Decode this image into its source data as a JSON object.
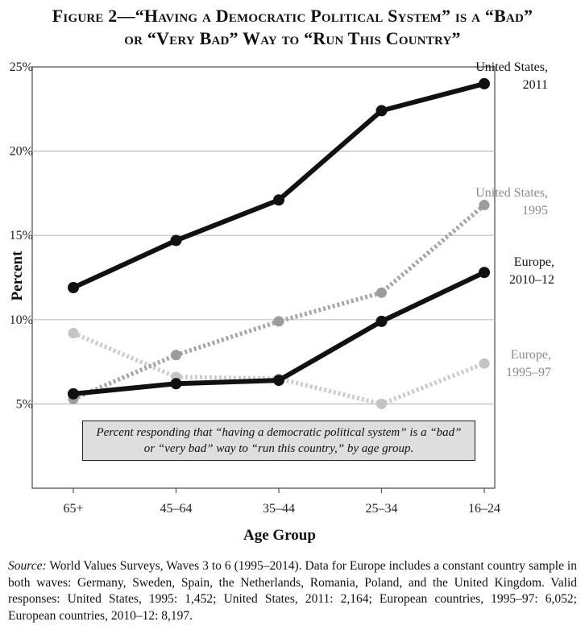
{
  "title": {
    "line1": "Figure 2—“Having a Democratic Political System” is a “Bad”",
    "line2": "or “Very Bad” Way to “Run This Country”"
  },
  "note_box": "Percent responding that “having a democratic political system” is a “bad” or “very bad” way to “run this country,” by age group.",
  "source": {
    "label": "Source:",
    "text": "World Values Surveys, Waves 3 to 6 (1995–2014). Data for Europe includes a constant country sample in both waves: Germany, Sweden, Spain, the Netherlands, Romania, Poland, and the United Kingdom. Valid responses: United States, 1995: 1,452; United States, 2011: 2,164; European countries, 1995–97: 6,052; European countries, 2010–12: 8,197."
  },
  "colors": {
    "dark": "#111111",
    "gray_medium": "#a6a6a6",
    "gray_light": "#cccccc",
    "label_gray": "#8a8a8a",
    "grid": "#bdbdbd",
    "note_fill": "#dedede"
  },
  "chart_data": {
    "type": "line",
    "xlabel": "Age Group",
    "ylabel": "Percent",
    "categories": [
      "65+",
      "45–64",
      "35–44",
      "25–34",
      "16–24"
    ],
    "ylim": [
      0,
      25
    ],
    "yticks": [
      5,
      10,
      15,
      20,
      25
    ],
    "ytick_labels": [
      "5%",
      "10%",
      "15%",
      "20%",
      "25%"
    ],
    "grid": true,
    "series": [
      {
        "name": "United States, 2011",
        "label_lines": [
          "United States,",
          "2011"
        ],
        "style": "solid",
        "color": "#111111",
        "values": [
          11.9,
          14.7,
          17.1,
          22.4,
          24.0
        ]
      },
      {
        "name": "United States, 1995",
        "label_lines": [
          "United States,",
          "1995"
        ],
        "style": "dotted",
        "color": "#a6a6a6",
        "values": [
          5.3,
          7.9,
          9.9,
          11.6,
          16.8
        ]
      },
      {
        "name": "Europe, 2010–12",
        "label_lines": [
          "Europe,",
          "2010–12"
        ],
        "style": "solid",
        "color": "#111111",
        "values": [
          5.6,
          6.2,
          6.4,
          9.9,
          12.8
        ]
      },
      {
        "name": "Europe, 1995–97",
        "label_lines": [
          "Europe,",
          "1995–97"
        ],
        "style": "dotted",
        "color": "#cccccc",
        "values": [
          9.2,
          6.6,
          6.5,
          5.0,
          7.4
        ]
      }
    ]
  }
}
